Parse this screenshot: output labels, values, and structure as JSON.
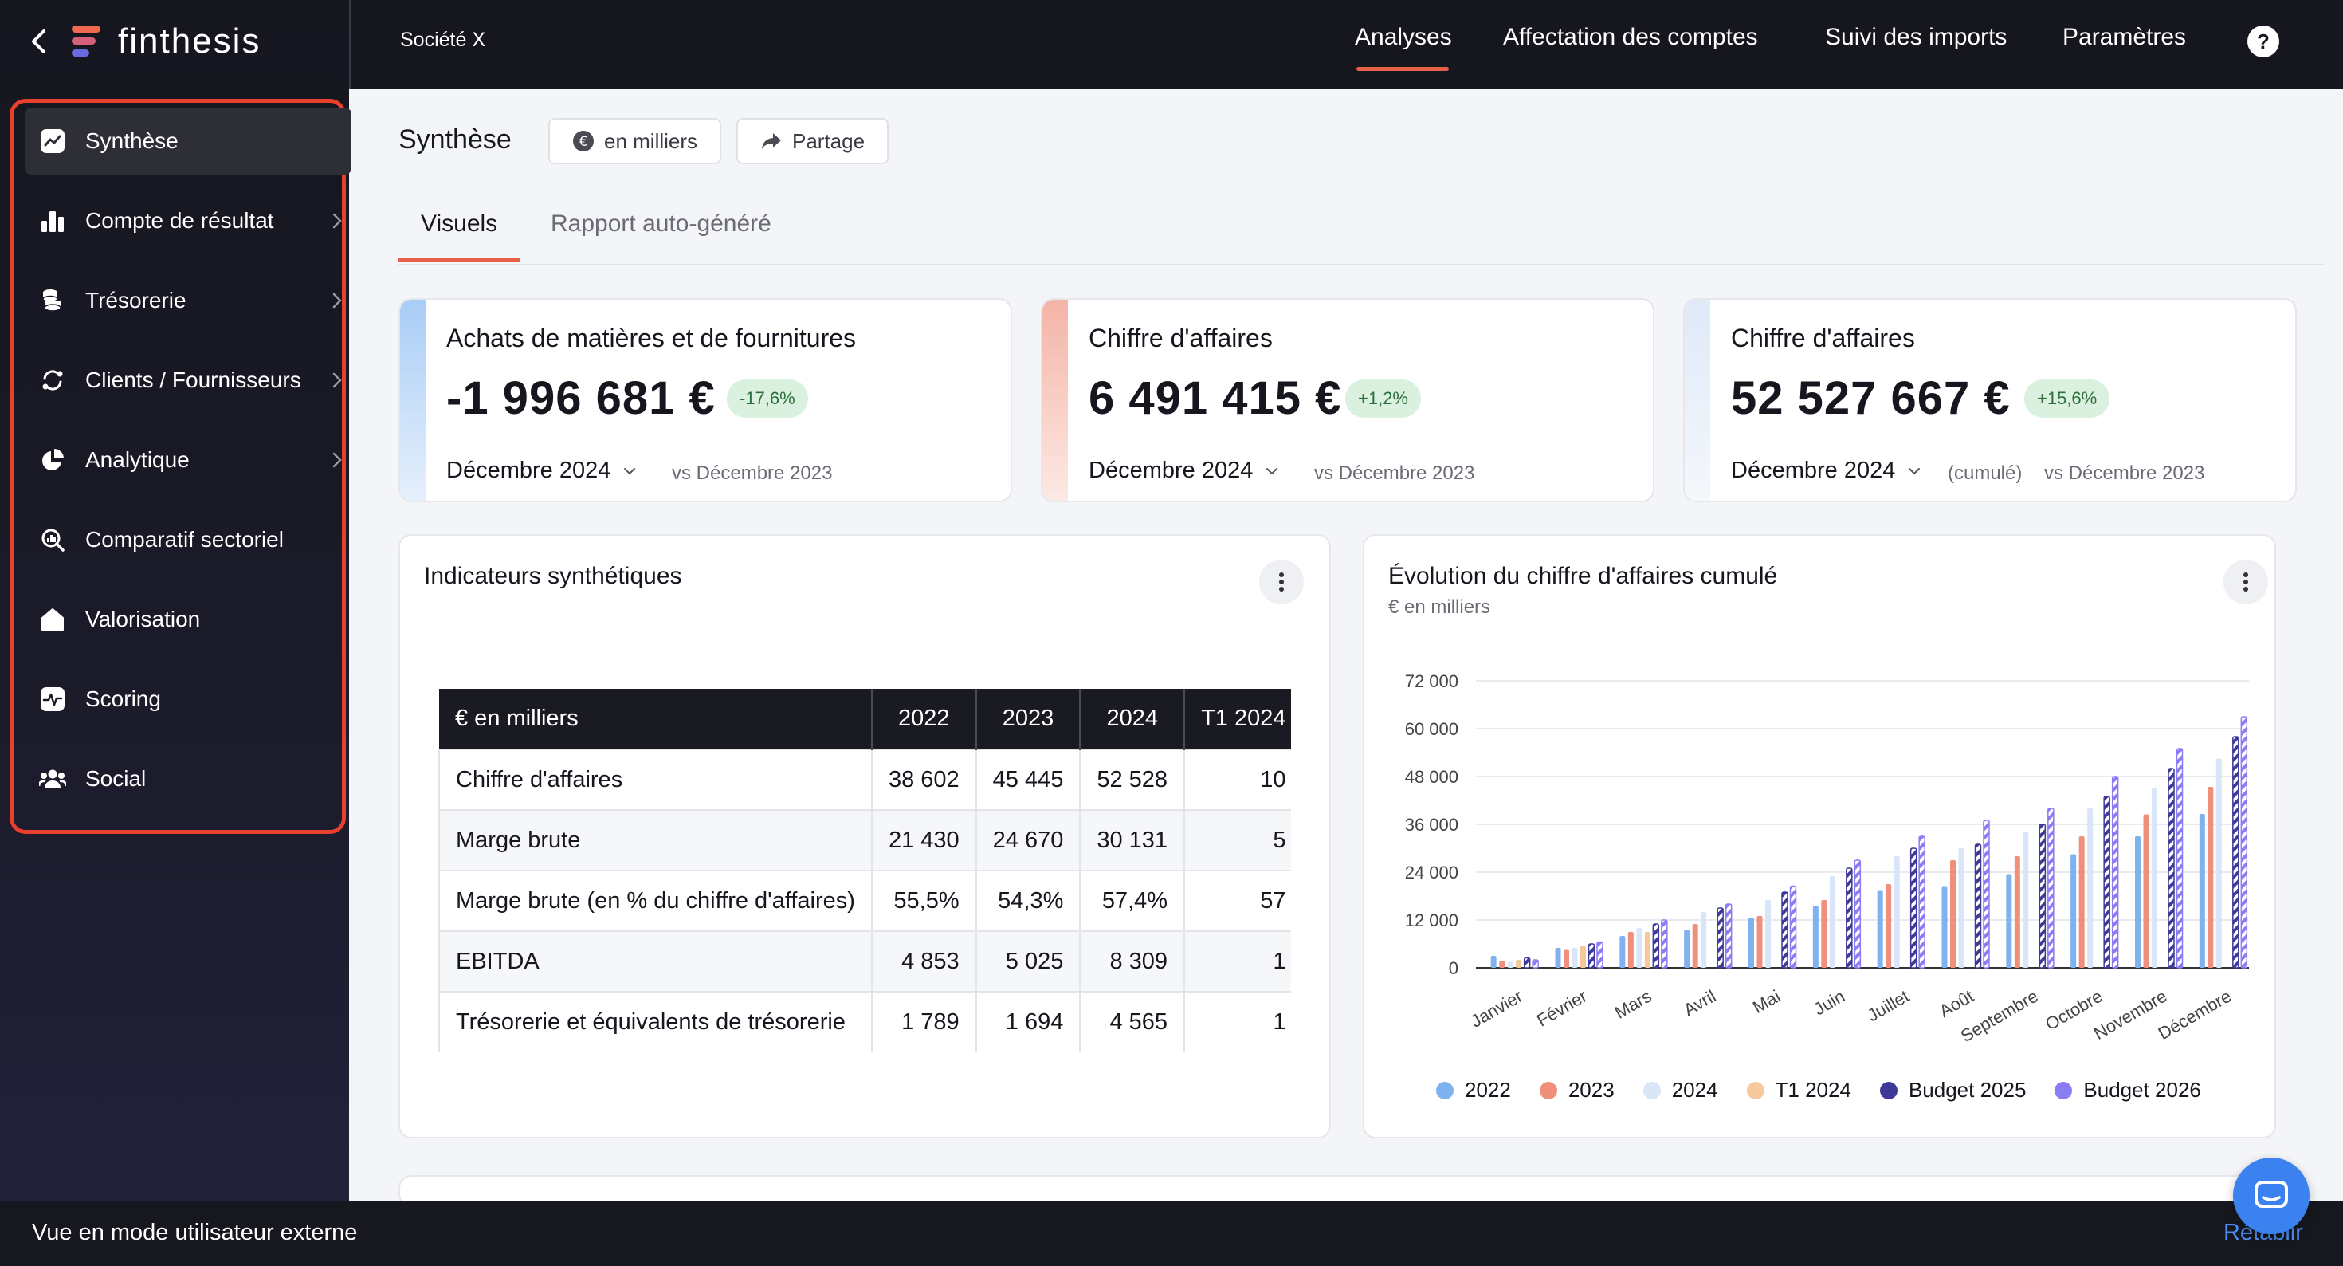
{
  "brand": {
    "name": "finthesis"
  },
  "sidebar": {
    "items": [
      {
        "label": "Synthèse",
        "icon": "chart-line-icon",
        "active": true,
        "chevron": false
      },
      {
        "label": "Compte de résultat",
        "icon": "bar-chart-icon",
        "active": false,
        "chevron": true
      },
      {
        "label": "Trésorerie",
        "icon": "coins-icon",
        "active": false,
        "chevron": true
      },
      {
        "label": "Clients / Fournisseurs",
        "icon": "exchange-icon",
        "active": false,
        "chevron": true
      },
      {
        "label": "Analytique",
        "icon": "pie-chart-icon",
        "active": false,
        "chevron": true
      },
      {
        "label": "Comparatif sectoriel",
        "icon": "magnifier-chart-icon",
        "active": false,
        "chevron": false
      },
      {
        "label": "Valorisation",
        "icon": "home-icon",
        "active": false,
        "chevron": false
      },
      {
        "label": "Scoring",
        "icon": "pulse-icon",
        "active": false,
        "chevron": false
      },
      {
        "label": "Social",
        "icon": "users-icon",
        "active": false,
        "chevron": false
      }
    ]
  },
  "topbar": {
    "company": "Société X",
    "nav": [
      "Analyses",
      "Affectation des comptes",
      "Suivi des imports",
      "Paramètres"
    ],
    "active_nav": "Analyses",
    "help": "?"
  },
  "page": {
    "title": "Synthèse",
    "unit_button": "en milliers",
    "share_button": "Partage",
    "tabs": [
      "Visuels",
      "Rapport auto-généré"
    ]
  },
  "kpis": [
    {
      "title": "Achats de matières et de fournitures",
      "value": "-1 996 681 €",
      "badge": "-17,6%",
      "period": "Décembre 2024",
      "compare": "vs Décembre 2023",
      "accent": "#a9cdf6"
    },
    {
      "title": "Chiffre d'affaires",
      "value": "6 491 415 €",
      "badge": "+1,2%",
      "period": "Décembre 2024",
      "compare": "vs Décembre 2023",
      "accent": "#f3b4a6"
    },
    {
      "title": "Chiffre d'affaires",
      "value": "52 527 667 €",
      "badge": "+15,6%",
      "period": "Décembre 2024",
      "cumul": "(cumulé)",
      "compare": "vs Décembre 2023",
      "accent": "#dfe9f7"
    }
  ],
  "indicators": {
    "title": "Indicateurs synthétiques",
    "header": [
      "€ en milliers",
      "2022",
      "2023",
      "2024",
      "T1 2024"
    ],
    "rows": [
      [
        "Chiffre d'affaires",
        "38 602",
        "45 445",
        "52 528",
        "10"
      ],
      [
        "Marge brute",
        "21 430",
        "24 670",
        "30 131",
        "5"
      ],
      [
        "Marge brute (en % du chiffre d'affaires)",
        "55,5%",
        "54,3%",
        "57,4%",
        "57"
      ],
      [
        "EBITDA",
        "4 853",
        "5 025",
        "8 309",
        "1"
      ],
      [
        "Trésorerie et équivalents de trésorerie",
        "1 789",
        "1 694",
        "4 565",
        "1"
      ]
    ]
  },
  "chart_data": {
    "type": "bar",
    "title": "Évolution du chiffre d'affaires cumulé",
    "subtitle": "€ en milliers",
    "categories": [
      "Janvier",
      "Février",
      "Mars",
      "Avril",
      "Mai",
      "Juin",
      "Juillet",
      "Août",
      "Septembre",
      "Octobre",
      "Novembre",
      "Décembre"
    ],
    "ylim": [
      0,
      72000
    ],
    "yticks": [
      0,
      12000,
      24000,
      36000,
      48000,
      60000,
      72000
    ],
    "ytick_labels": [
      "0",
      "12 000",
      "24 000",
      "36 000",
      "48 000",
      "60 000",
      "72 000"
    ],
    "series": [
      {
        "name": "2022",
        "color": "#7fb2ee",
        "pattern": "solid",
        "values": [
          3000,
          5000,
          8000,
          9500,
          12500,
          15500,
          19500,
          20500,
          23500,
          28500,
          33000,
          38600
        ]
      },
      {
        "name": "2023",
        "color": "#f0907c",
        "pattern": "solid",
        "values": [
          1800,
          4500,
          9000,
          11000,
          13000,
          17000,
          21000,
          27000,
          28000,
          33000,
          38500,
          45400
        ]
      },
      {
        "name": "2024",
        "color": "#d9e6f7",
        "pattern": "solid",
        "values": [
          1500,
          5000,
          10000,
          14000,
          17000,
          23000,
          28000,
          30000,
          34000,
          40000,
          45000,
          52500
        ]
      },
      {
        "name": "T1 2024",
        "color": "#f6c89c",
        "pattern": "solid",
        "values": [
          2000,
          5500,
          9000,
          0,
          0,
          0,
          0,
          0,
          0,
          0,
          0,
          0
        ]
      },
      {
        "name": "Budget 2025",
        "color": "#3f3a9a",
        "pattern": "hatched",
        "values": [
          2500,
          6000,
          11000,
          15000,
          19000,
          25000,
          30000,
          31000,
          36000,
          43000,
          50000,
          58000
        ]
      },
      {
        "name": "Budget 2026",
        "color": "#8a7cf4",
        "pattern": "hatched",
        "values": [
          2000,
          6500,
          12000,
          16000,
          20500,
          27000,
          33000,
          37000,
          40000,
          48000,
          55000,
          63000
        ]
      }
    ]
  },
  "footer": {
    "mode_text": "Vue en mode utilisateur externe",
    "reset_label": "Rétablir"
  }
}
